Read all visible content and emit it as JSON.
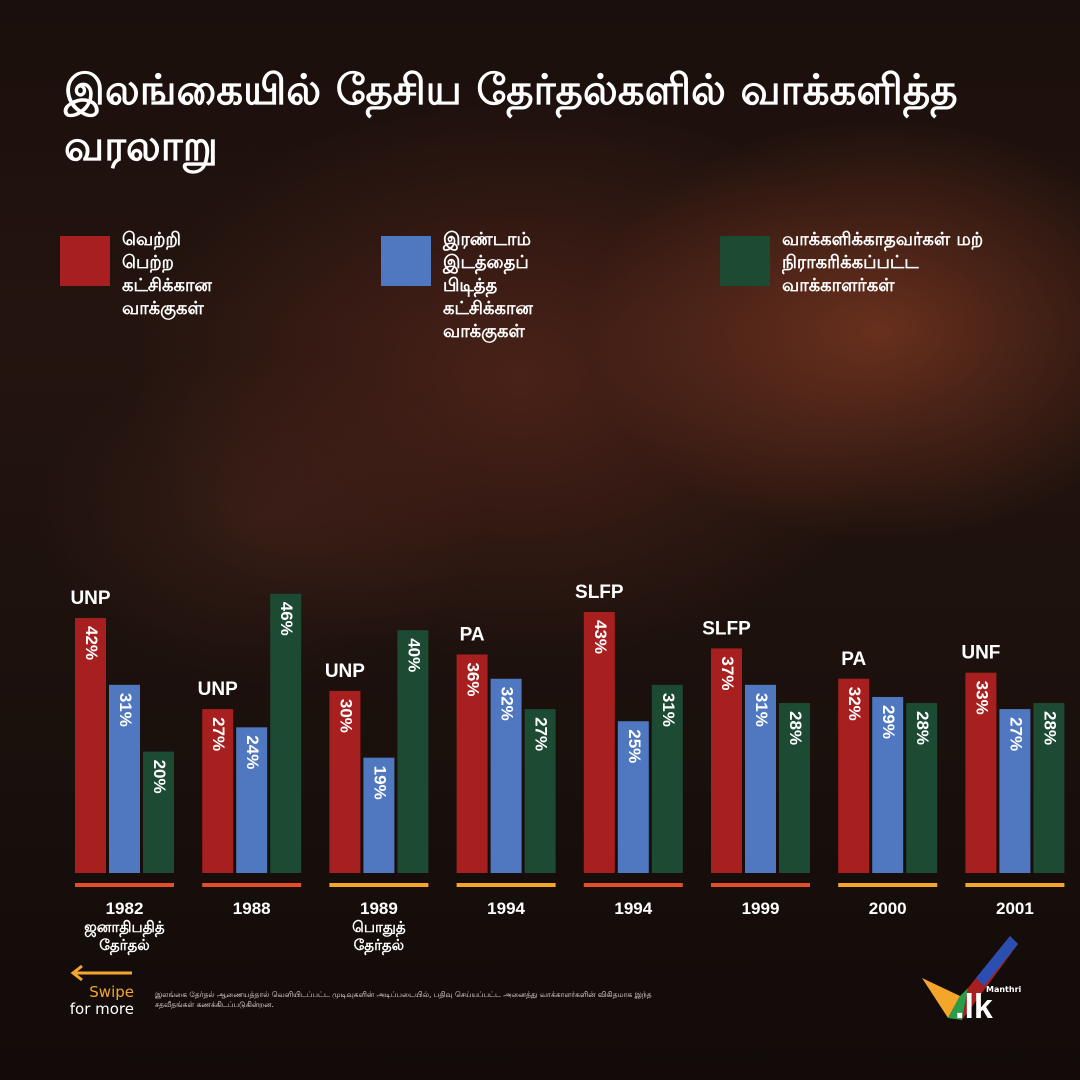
{
  "title": "இலங்கையில் தேசிய தேர்தல்களில் வாக்களித்த வரலாறு",
  "legend": [
    {
      "label": "வெற்றி பெற்ற\nகட்சிக்கான\nவாக்குகள்",
      "color": "#a81f1f"
    },
    {
      "label": "இரண்டாம் இடத்தைப்\nபிடித்த கட்சிக்கான\nவாக்குகள்",
      "color": "#4f78c0"
    },
    {
      "label": "வாக்களிக்காதவர்கள் மற்\nநிராகரிக்கப்பட்ட\nவாக்காளர்கள்",
      "color": "#1c4a33"
    }
  ],
  "chart_data": {
    "type": "bar",
    "categories": [
      "1982\nஜனாதிபதித்\nதேர்தல்",
      "1988",
      "1989\nபொதுத்\nதேர்தல்",
      "1994",
      "1994",
      "1999",
      "2000",
      "2001"
    ],
    "winning_party": [
      "UNP",
      "UNP",
      "UNP",
      "PA",
      "SLFP",
      "SLFP",
      "PA",
      "UNF"
    ],
    "series": [
      {
        "name": "வெற்றி பெற்ற கட்சிக்கான வாக்குகள்",
        "color": "#a81f1f",
        "values": [
          42,
          27,
          30,
          36,
          43,
          37,
          32,
          33
        ]
      },
      {
        "name": "இரண்டாம் இடத்தைப் பிடித்த கட்சிக்கான வாக்குகள்",
        "color": "#4f78c0",
        "values": [
          31,
          24,
          19,
          32,
          25,
          31,
          29,
          27
        ]
      },
      {
        "name": "வாக்களிக்காதவர்கள் மற் நிராகரிக்கப்பட்ட வாக்காளர்கள்",
        "color": "#1c4a33",
        "values": [
          20,
          46,
          40,
          27,
          31,
          28,
          28,
          28
        ]
      }
    ],
    "underline_colors": [
      "#e2502a",
      "#e2502a",
      "#f4a62a",
      "#f4a62a",
      "#e2502a",
      "#e2502a",
      "#f4a62a",
      "#f4a62a"
    ],
    "value_suffix": "%",
    "ylim": [
      0,
      100
    ],
    "grid": false,
    "legend_position": "top"
  },
  "footer": {
    "note": "இலங்கை தேர்தல் ஆணையத்தால் வெளியிடப்பட்ட முடிவுகளின் அடிப்படையில், பதிவு செய்யப்பட்ட அனைத்து வாக்காளர்களின் விகிதமாக இந்த சதவீதங்கள் கணக்கிடப்படுகின்றன.",
    "swipe": "Swipe",
    "swipe_sub": "for more",
    "brand_small": "Manthri",
    "brand_big": ".lk"
  }
}
